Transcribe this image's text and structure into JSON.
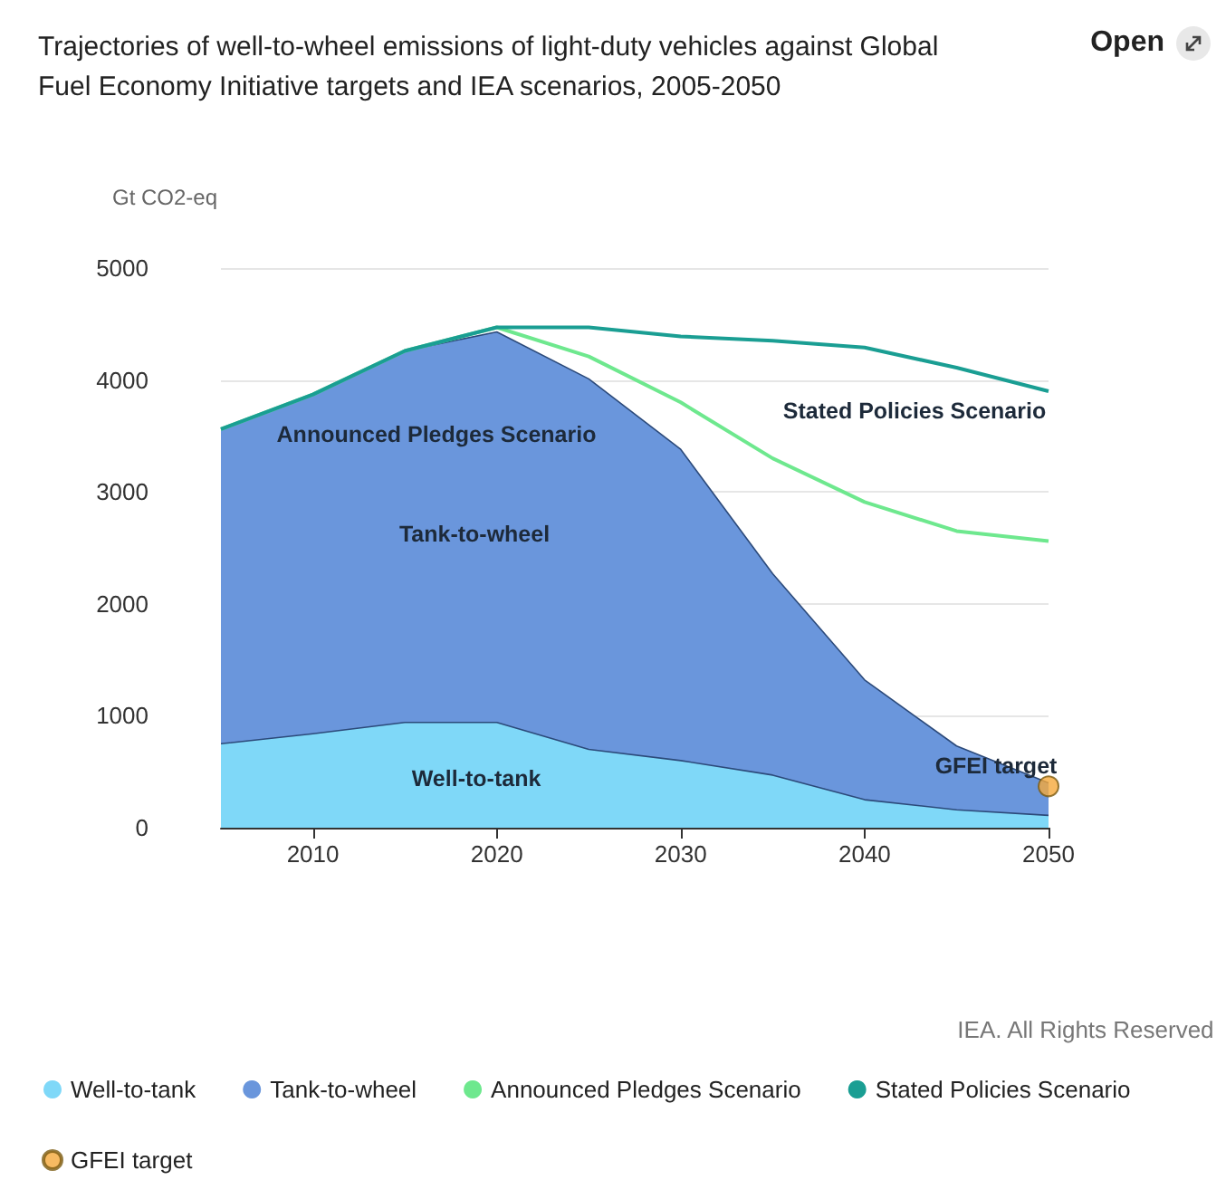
{
  "chart_data": {
    "type": "area",
    "title": "Trajectories of well-to-wheel emissions of light-duty vehicles against Global Fuel Economy Initiative targets and IEA scenarios, 2005-2050",
    "ylabel": "Gt CO2-eq",
    "x": [
      2005,
      2010,
      2015,
      2020,
      2025,
      2030,
      2035,
      2040,
      2045,
      2050
    ],
    "series": [
      {
        "name": "Well-to-tank",
        "color": "#7fd8f8",
        "values": [
          750,
          840,
          940,
          940,
          700,
          600,
          470,
          250,
          160,
          110
        ]
      },
      {
        "name": "Tank-to-wheel",
        "color": "#6a96dc",
        "values": [
          2810,
          3030,
          3320,
          3490,
          3310,
          2780,
          1800,
          1070,
          570,
          290
        ]
      },
      {
        "name": "Announced Pledges Scenario",
        "type": "line",
        "color": "#6ee88e",
        "values": [
          3560,
          3870,
          4260,
          4470,
          4210,
          3800,
          3300,
          2910,
          2650,
          2560
        ]
      },
      {
        "name": "Stated Policies Scenario",
        "type": "line",
        "color": "#1a9e93",
        "values": [
          3560,
          3870,
          4260,
          4470,
          4470,
          4390,
          4350,
          4290,
          4110,
          3900
        ]
      },
      {
        "name": "GFEI target",
        "type": "scatter",
        "marker": "circle",
        "color": "#f5a93b",
        "x": [
          2050
        ],
        "values": [
          370
        ]
      }
    ],
    "stacked": true,
    "marker": "none",
    "line_style": "solid",
    "xlim": [
      2005,
      2050
    ],
    "xticks": [
      2010,
      2020,
      2030,
      2040,
      2050
    ],
    "ylim": [
      0,
      5000
    ],
    "yticks": [
      0,
      1000,
      2000,
      3000,
      4000,
      5000
    ],
    "grid": "y",
    "legend": "bottom",
    "annotations": [
      "Announced Pledges Scenario",
      "Tank-to-wheel",
      "Well-to-tank",
      "Stated Policies Scenario",
      "GFEI target",
      "IEA. All Rights Reserved",
      "Open"
    ]
  }
}
